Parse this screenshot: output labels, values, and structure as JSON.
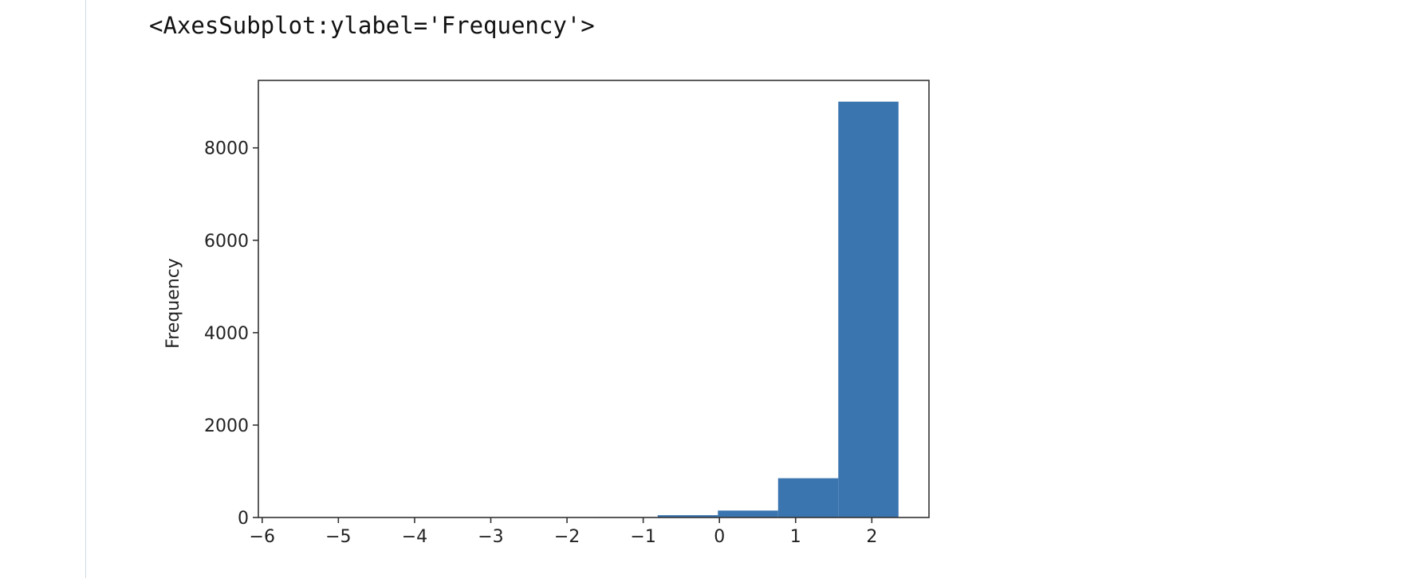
{
  "output": {
    "repr_text": "<AxesSubplot:ylabel='Frequency'>"
  },
  "chart_data": {
    "type": "bar",
    "title": "",
    "xlabel": "",
    "ylabel": "Frequency",
    "xlim": [
      -6.05,
      2.75
    ],
    "ylim": [
      0,
      9460
    ],
    "x_ticks": [
      -6,
      -5,
      -4,
      -3,
      -2,
      -1,
      0,
      1,
      2
    ],
    "y_ticks": [
      0,
      2000,
      4000,
      6000,
      8000
    ],
    "bins": [
      {
        "x0": -5.55,
        "x1": -4.76,
        "value": 1
      },
      {
        "x0": -4.76,
        "x1": -3.97,
        "value": 1
      },
      {
        "x0": -3.97,
        "x1": -3.18,
        "value": 2
      },
      {
        "x0": -3.18,
        "x1": -2.39,
        "value": 3
      },
      {
        "x0": -2.39,
        "x1": -1.6,
        "value": 5
      },
      {
        "x0": -1.6,
        "x1": -0.81,
        "value": 10
      },
      {
        "x0": -0.81,
        "x1": -0.02,
        "value": 50
      },
      {
        "x0": -0.02,
        "x1": 0.77,
        "value": 150
      },
      {
        "x0": 0.77,
        "x1": 1.56,
        "value": 850
      },
      {
        "x0": 1.56,
        "x1": 2.35,
        "value": 9000
      }
    ],
    "bar_color": "#3a75af",
    "grid": false
  }
}
